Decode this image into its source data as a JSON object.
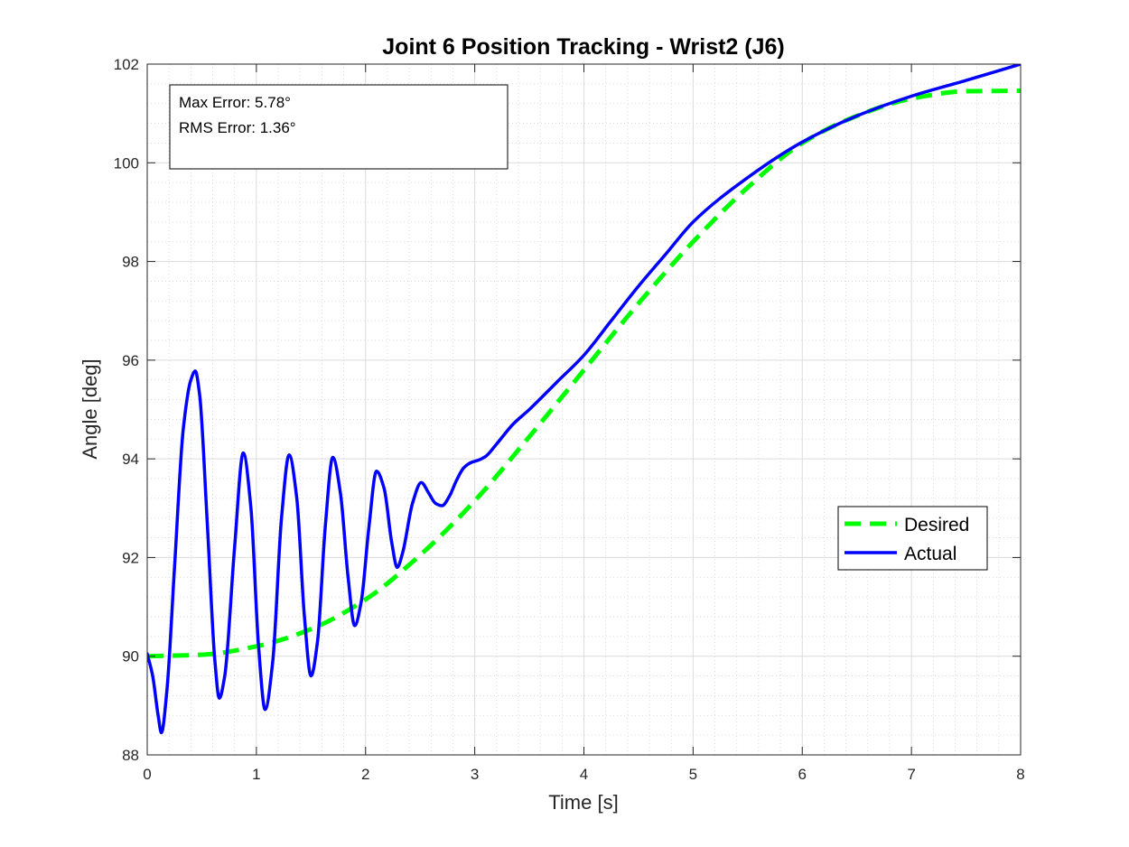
{
  "chart_data": {
    "type": "line",
    "title": "Joint 6 Position Tracking - Wrist2 (J6)",
    "xlabel": "Time [s]",
    "ylabel": "Angle [deg]",
    "xlim": [
      0,
      8
    ],
    "ylim": [
      88,
      102
    ],
    "xticks": [
      0,
      1,
      2,
      3,
      4,
      5,
      6,
      7,
      8
    ],
    "yticks": [
      88,
      90,
      92,
      94,
      96,
      98,
      100,
      102
    ],
    "x_minor_step": 0.2,
    "y_minor_step": 0.4,
    "grid": true,
    "minor_grid": true,
    "legend_position": "right-middle",
    "annotation": {
      "lines": [
        "Max Error: 5.78°",
        "RMS Error: 1.36°"
      ],
      "position": "top-left"
    },
    "series": [
      {
        "name": "Desired",
        "style": "dashed",
        "color": "#00ff00",
        "x": [
          0,
          0.5,
          1.0,
          1.5,
          2.0,
          2.5,
          3.0,
          3.5,
          4.0,
          4.5,
          5.0,
          5.5,
          6.0,
          6.5,
          7.0,
          7.5,
          8.0
        ],
        "y": [
          90.0,
          90.03,
          90.2,
          90.55,
          91.15,
          92.05,
          93.15,
          94.45,
          95.8,
          97.15,
          98.4,
          99.5,
          100.4,
          100.95,
          101.3,
          101.45,
          101.46
        ]
      },
      {
        "name": "Actual",
        "style": "solid",
        "color": "#0000ff",
        "x": [
          0,
          0.05,
          0.1,
          0.13,
          0.18,
          0.25,
          0.33,
          0.4,
          0.44,
          0.48,
          0.55,
          0.62,
          0.66,
          0.71,
          0.8,
          0.88,
          0.95,
          1.02,
          1.08,
          1.15,
          1.23,
          1.3,
          1.37,
          1.44,
          1.5,
          1.56,
          1.63,
          1.7,
          1.77,
          1.84,
          1.9,
          1.96,
          2.03,
          2.1,
          2.17,
          2.24,
          2.29,
          2.34,
          2.43,
          2.51,
          2.58,
          2.64,
          2.7,
          2.77,
          2.83,
          2.9,
          2.97,
          3.03,
          3.1,
          3.2,
          3.35,
          3.5,
          3.75,
          4.0,
          4.25,
          4.5,
          4.75,
          5.0,
          5.5,
          6.0,
          6.5,
          7.0,
          7.5,
          8.0
        ],
        "y": [
          90.05,
          89.6,
          88.8,
          88.45,
          89.3,
          91.8,
          94.6,
          95.6,
          95.78,
          95.3,
          92.7,
          89.9,
          89.15,
          89.6,
          92.2,
          94.12,
          93.0,
          90.2,
          88.92,
          89.9,
          92.8,
          94.08,
          93.2,
          90.8,
          89.6,
          90.3,
          92.6,
          94.03,
          93.3,
          91.6,
          90.62,
          91.1,
          92.6,
          93.75,
          93.4,
          92.3,
          91.8,
          92.1,
          93.1,
          93.52,
          93.3,
          93.1,
          93.05,
          93.25,
          93.55,
          93.82,
          93.93,
          93.97,
          94.05,
          94.3,
          94.7,
          95.0,
          95.55,
          96.1,
          96.8,
          97.5,
          98.15,
          98.8,
          99.7,
          100.42,
          100.95,
          101.35,
          101.67,
          102.0
        ]
      }
    ]
  }
}
